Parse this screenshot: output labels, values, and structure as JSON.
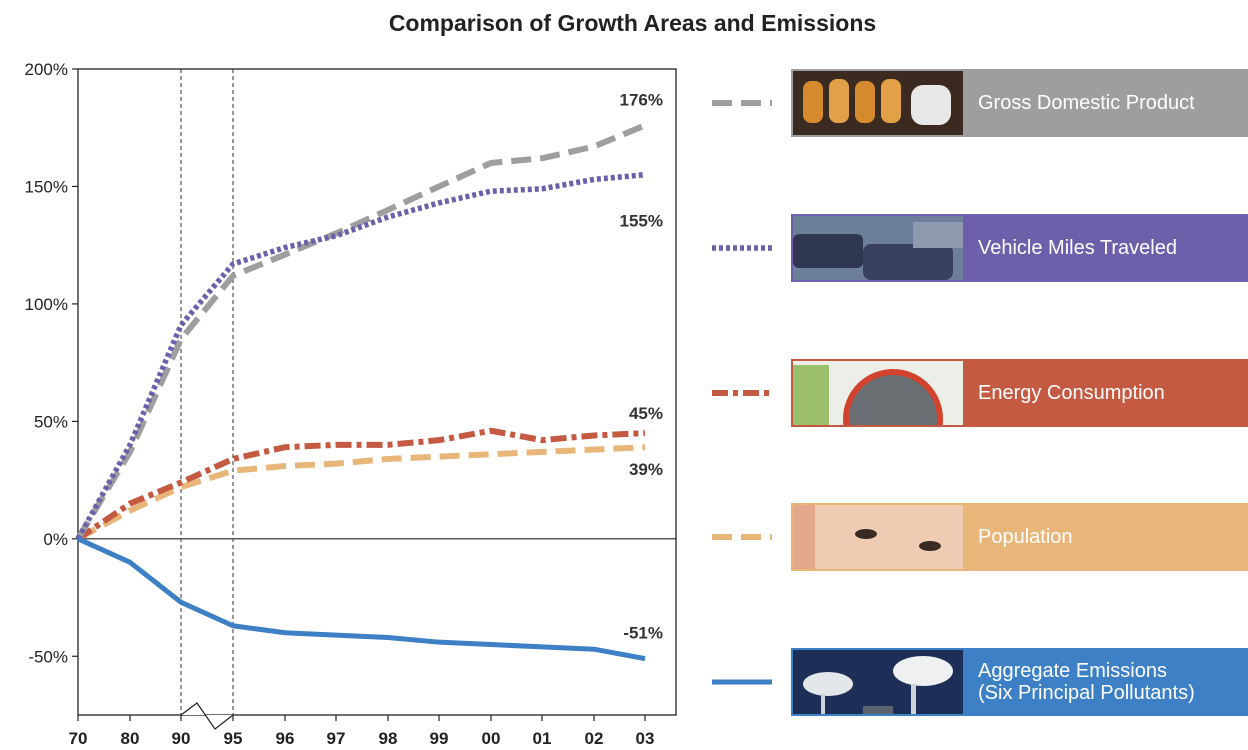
{
  "chart_data": {
    "type": "line",
    "title": "Comparison of Growth Areas and Emissions",
    "x": [
      "70",
      "80",
      "90",
      "95",
      "96",
      "97",
      "98",
      "99",
      "00",
      "01",
      "02",
      "03"
    ],
    "y_ticks": [
      "200%",
      "150%",
      "100%",
      "50%",
      "0%",
      "-50%"
    ],
    "ylim": [
      -75,
      200
    ],
    "axis_break": "between 90 and 95",
    "series": [
      {
        "name": "Gross Domestic Product",
        "color": "#9e9e9e",
        "style": "dashed",
        "end_label": "176%",
        "values": [
          0,
          37,
          85,
          112,
          121,
          130,
          140,
          150,
          160,
          162,
          167,
          176
        ]
      },
      {
        "name": "Vehicle Miles Traveled",
        "color": "#6e5fab",
        "style": "dotted",
        "end_label": "155%",
        "values": [
          0,
          40,
          91,
          117,
          124,
          129,
          137,
          143,
          148,
          149,
          153,
          155
        ]
      },
      {
        "name": "Energy Consumption",
        "color": "#c45a42",
        "style": "dash-dot",
        "end_label": "45%",
        "values": [
          0,
          15,
          24,
          34,
          39,
          40,
          40,
          42,
          46,
          42,
          44,
          45
        ]
      },
      {
        "name": "Population",
        "color": "#e9b67a",
        "style": "dashed",
        "end_label": "39%",
        "values": [
          0,
          12,
          22,
          29,
          31,
          32,
          34,
          35,
          36,
          37,
          38,
          39
        ]
      },
      {
        "name": "Aggregate Emissions (Six Principal Pollutants)",
        "color": "#3d80c6",
        "style": "solid",
        "end_label": "-51%",
        "values": [
          0,
          -10,
          -27,
          -37,
          -40,
          -41,
          -42,
          -44,
          -45,
          -46,
          -47,
          -51
        ]
      }
    ],
    "legend": [
      {
        "label": "Gross Domestic Product",
        "bg": "#9e9e9e",
        "photo": "jars"
      },
      {
        "label": "Vehicle Miles Traveled",
        "bg": "#6e5fab",
        "photo": "traffic"
      },
      {
        "label": "Energy Consumption",
        "bg": "#c45a42",
        "photo": "stove"
      },
      {
        "label": "Population",
        "bg": "#e9b67a",
        "photo": "baby"
      },
      {
        "label": "Aggregate Emissions",
        "label2": "(Six Principal Pollutants)",
        "bg": "#3d80c6",
        "photo": "smokestacks"
      }
    ],
    "legend_placement": "right",
    "grid": false
  }
}
